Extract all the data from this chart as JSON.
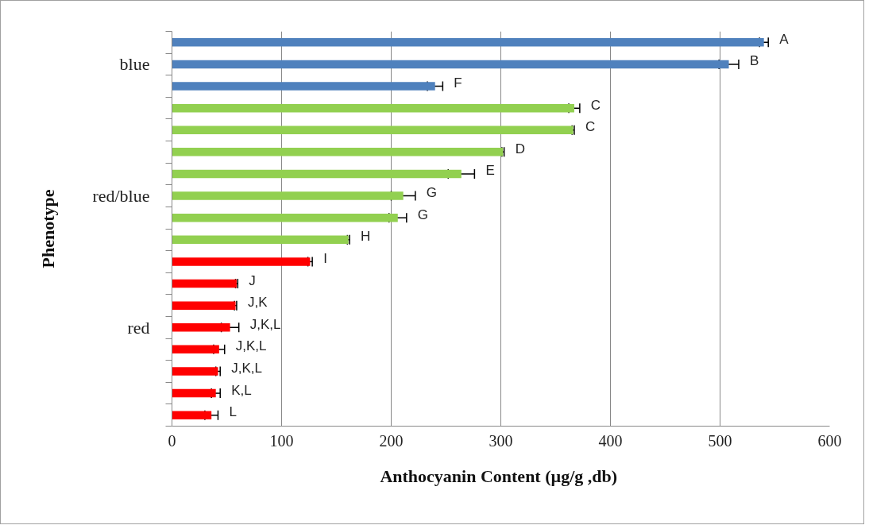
{
  "chart_data": {
    "type": "bar",
    "orientation": "horizontal",
    "xlabel": "Anthocyanin  Content (µg/g ,db)",
    "ylabel": "Phenotype",
    "categories": [
      null,
      "blue",
      null,
      null,
      null,
      null,
      null,
      "red/blue",
      null,
      null,
      null,
      null,
      null,
      "red",
      null,
      null,
      null,
      null
    ],
    "values": [
      540,
      508,
      240,
      367,
      366,
      302,
      264,
      211,
      206,
      161,
      126,
      59,
      58,
      53,
      43,
      42,
      40,
      36
    ],
    "errors": [
      4,
      9,
      7,
      5,
      1,
      1,
      12,
      11,
      8,
      1,
      2,
      1,
      1,
      8,
      5,
      2,
      4,
      6
    ],
    "colors": [
      "#4f81bd",
      "#4f81bd",
      "#4f81bd",
      "#92d050",
      "#92d050",
      "#92d050",
      "#92d050",
      "#92d050",
      "#92d050",
      "#92d050",
      "#ff0000",
      "#ff0000",
      "#ff0000",
      "#ff0000",
      "#ff0000",
      "#ff0000",
      "#ff0000",
      "#ff0000"
    ],
    "value_labels": [
      "A",
      "B",
      "F",
      "C",
      "C",
      "D",
      "E",
      "G",
      "G",
      "H",
      "I",
      "J",
      "J,K",
      "J,K,L",
      "J,K,L",
      "J,K,L",
      "K,L",
      "L"
    ],
    "xlim": [
      0,
      600
    ],
    "xticks": [
      0,
      100,
      200,
      300,
      400,
      500,
      600
    ],
    "grid": "x"
  }
}
